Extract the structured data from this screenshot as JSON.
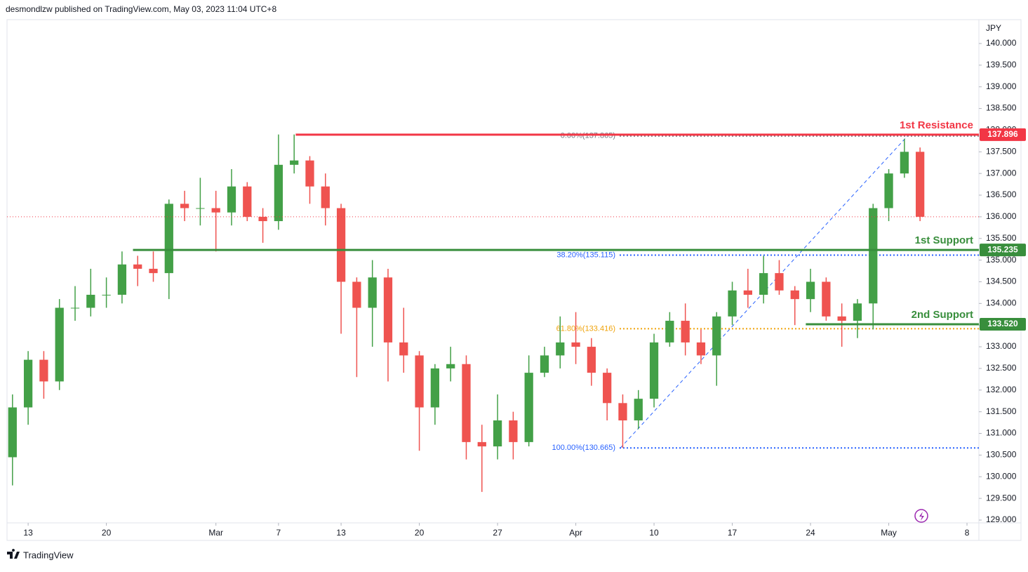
{
  "header": {
    "text": "desmondlzw published on TradingView.com, May 03, 2023 11:04 UTC+8"
  },
  "footer": {
    "brand": "TradingView"
  },
  "chart_data": {
    "type": "candlestick",
    "currency": "JPY",
    "up_color": "#43a047",
    "down_color": "#ef5350",
    "candles": {
      "open": [
        130.45,
        131.6,
        132.7,
        132.2,
        133.9,
        133.9,
        134.2,
        134.2,
        134.9,
        134.8,
        134.7,
        136.3,
        136.2,
        136.2,
        136.1,
        136.7,
        136.0,
        135.9,
        137.2,
        137.3,
        136.7,
        136.2,
        134.5,
        133.9,
        134.6,
        133.1,
        132.8,
        131.6,
        132.5,
        132.6,
        130.8,
        130.7,
        131.3,
        130.8,
        132.4,
        132.8,
        133.1,
        133.0,
        132.4,
        131.7,
        131.3,
        131.8,
        133.1,
        133.6,
        133.1,
        132.8,
        133.7,
        134.3,
        134.2,
        134.7,
        134.3,
        134.1,
        134.5,
        133.7,
        133.6,
        134.0,
        136.2,
        137.0,
        137.5
      ],
      "high": [
        131.9,
        132.9,
        132.9,
        134.1,
        134.4,
        134.8,
        134.6,
        135.2,
        135.1,
        135.2,
        136.4,
        136.6,
        136.9,
        136.6,
        137.1,
        136.8,
        136.2,
        137.9,
        137.9,
        137.4,
        137.0,
        136.3,
        134.6,
        135.0,
        134.8,
        133.9,
        132.9,
        132.6,
        133.0,
        132.8,
        131.2,
        131.9,
        131.5,
        132.8,
        133.0,
        133.7,
        133.8,
        133.2,
        132.5,
        131.9,
        132.0,
        133.3,
        133.8,
        134.0,
        133.4,
        133.8,
        134.5,
        134.8,
        135.1,
        135.0,
        134.4,
        134.8,
        134.6,
        134.0,
        134.1,
        136.3,
        137.1,
        137.8,
        137.6
      ],
      "low": [
        129.8,
        131.2,
        131.8,
        132.0,
        133.6,
        133.7,
        133.9,
        134.0,
        134.4,
        134.5,
        134.1,
        135.9,
        135.8,
        135.2,
        135.8,
        135.9,
        135.4,
        135.7,
        137.0,
        136.3,
        135.8,
        133.3,
        132.3,
        133.0,
        132.2,
        132.4,
        130.6,
        131.2,
        132.2,
        130.4,
        129.65,
        130.4,
        130.4,
        130.7,
        132.3,
        132.5,
        132.6,
        132.1,
        131.3,
        130.665,
        131.1,
        131.6,
        133.0,
        132.8,
        132.6,
        132.1,
        133.5,
        133.9,
        134.0,
        134.2,
        133.5,
        133.8,
        133.6,
        133.0,
        133.2,
        133.4,
        135.9,
        136.9,
        135.9
      ],
      "close": [
        131.6,
        132.7,
        132.2,
        133.9,
        133.9,
        134.2,
        134.2,
        134.9,
        134.8,
        134.7,
        136.3,
        136.2,
        136.2,
        136.1,
        136.7,
        136.0,
        135.9,
        137.2,
        137.3,
        136.7,
        136.2,
        134.5,
        133.9,
        134.6,
        133.1,
        132.8,
        131.6,
        132.5,
        132.6,
        130.8,
        130.7,
        131.3,
        130.8,
        132.4,
        132.8,
        133.1,
        133.0,
        132.4,
        131.7,
        131.3,
        131.8,
        133.1,
        133.6,
        133.1,
        132.8,
        133.7,
        134.3,
        134.2,
        134.7,
        134.3,
        134.1,
        134.5,
        133.7,
        133.6,
        134.0,
        136.2,
        137.0,
        137.5,
        136.0
      ]
    },
    "last_price_color": "#f23645",
    "xlim": [
      -0.35,
      61.76
    ],
    "xticks": [
      {
        "value": 1,
        "label": "13"
      },
      {
        "value": 6,
        "label": "20"
      },
      {
        "value": 13,
        "label": "Mar"
      },
      {
        "value": 17,
        "label": "7"
      },
      {
        "value": 21,
        "label": "13"
      },
      {
        "value": 26,
        "label": "20"
      },
      {
        "value": 31,
        "label": "27"
      },
      {
        "value": 36,
        "label": "Apr"
      },
      {
        "value": 41,
        "label": "10"
      },
      {
        "value": 46,
        "label": "17"
      },
      {
        "value": 51,
        "label": "24"
      },
      {
        "value": 56,
        "label": "May"
      },
      {
        "value": 61,
        "label": "8"
      }
    ],
    "ylim": [
      128.935,
      140.518
    ],
    "yticks": [
      {
        "value": 129,
        "label": "129.000"
      },
      {
        "value": 129.5,
        "label": "129.500"
      },
      {
        "value": 130,
        "label": "130.000"
      },
      {
        "value": 130.5,
        "label": "130.500"
      },
      {
        "value": 131,
        "label": "131.000"
      },
      {
        "value": 131.5,
        "label": "131.500"
      },
      {
        "value": 132,
        "label": "132.000"
      },
      {
        "value": 132.5,
        "label": "132.500"
      },
      {
        "value": 133,
        "label": "133.000"
      },
      {
        "value": 133.5,
        "label": "133.500"
      },
      {
        "value": 134,
        "label": "134.000"
      },
      {
        "value": 134.5,
        "label": "134.500"
      },
      {
        "value": 135,
        "label": "135.000"
      },
      {
        "value": 135.5,
        "label": "135.500"
      },
      {
        "value": 136,
        "label": "136.000"
      },
      {
        "value": 136.5,
        "label": "136.500"
      },
      {
        "value": 137,
        "label": "137.000"
      },
      {
        "value": 137.5,
        "label": "137.500"
      },
      {
        "value": 138,
        "label": "138.000"
      },
      {
        "value": 138.5,
        "label": "138.500"
      },
      {
        "value": 139,
        "label": "139.000"
      },
      {
        "value": 139.5,
        "label": "139.500"
      },
      {
        "value": 140,
        "label": "140.000"
      }
    ],
    "levels": [
      {
        "name": "1st Resistance",
        "value": 137.896,
        "color": "#f23645",
        "start": 18.1
      },
      {
        "name": "1st Support",
        "value": 135.235,
        "color": "#388e3c",
        "start": 7.7
      },
      {
        "name": "2nd Support",
        "value": 133.52,
        "value_label": "133.520",
        "color": "#388e3c",
        "start": 50.7
      }
    ],
    "fibonacci": {
      "from": {
        "x": 38.85,
        "y": 130.665
      },
      "to": {
        "x": 57.2,
        "y": 137.865
      },
      "line_color": "#2962ff",
      "x_start": 38.8,
      "levels": [
        {
          "value": 137.865,
          "label": "0.00%(137.865)",
          "color": "#787b86"
        },
        {
          "value": 135.115,
          "label": "38.20%(135.115)",
          "color": "#2962ff"
        },
        {
          "value": 133.416,
          "label": "61.80%(133.416)",
          "color": "#f0a30a"
        },
        {
          "value": 130.665,
          "label": "100.00%(130.665)",
          "color": "#2962ff"
        }
      ]
    }
  }
}
